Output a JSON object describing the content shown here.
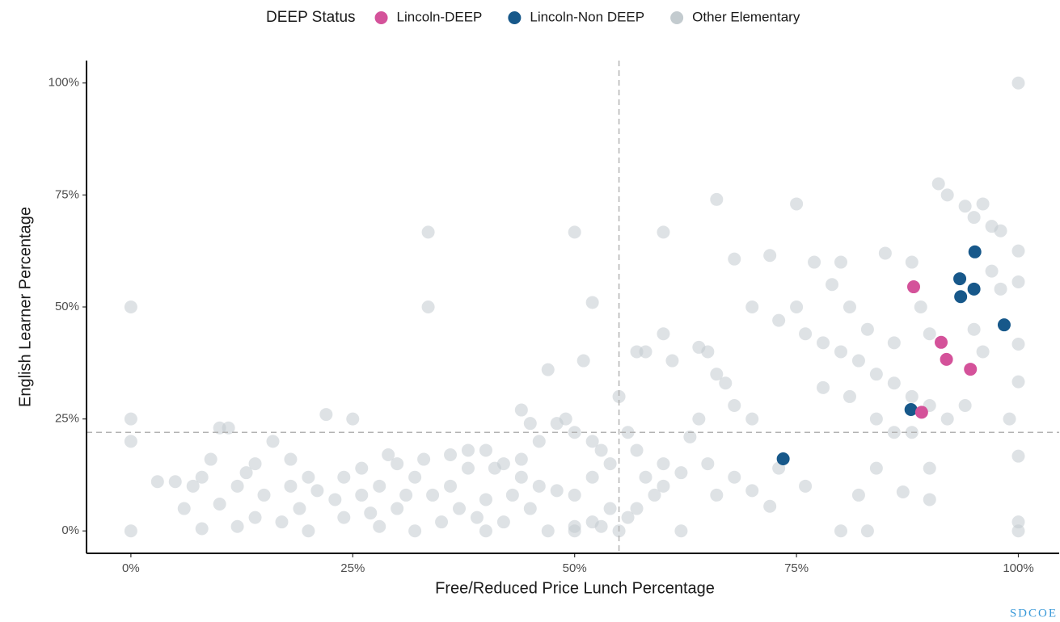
{
  "chart_data": {
    "type": "scatter",
    "xlabel": "Free/Reduced Price Lunch Percentage",
    "ylabel": "English Learner Percentage",
    "legend": {
      "title": "DEEP Status",
      "position": "top"
    },
    "watermark": "SDCOE",
    "xlim": [
      -5,
      104.6
    ],
    "ylim": [
      -5,
      105
    ],
    "xticks": [
      {
        "value": 0,
        "label": "0%"
      },
      {
        "value": 25,
        "label": "25%"
      },
      {
        "value": 50,
        "label": "50%"
      },
      {
        "value": 75,
        "label": "75%"
      },
      {
        "value": 100,
        "label": "100%"
      }
    ],
    "yticks": [
      {
        "value": 0,
        "label": "0%"
      },
      {
        "value": 25,
        "label": "25%"
      },
      {
        "value": 50,
        "label": "50%"
      },
      {
        "value": 75,
        "label": "75%"
      },
      {
        "value": 100,
        "label": "100%"
      }
    ],
    "grid": false,
    "vline": 55,
    "hline": 22,
    "series": [
      {
        "name": "Lincoln-DEEP",
        "color": "#d4529a",
        "x": [
          88.2,
          91.3,
          91.9,
          94.6,
          89.1
        ],
        "values": [
          54.5,
          42.1,
          38.3,
          36.1,
          26.5
        ]
      },
      {
        "name": "Lincoln-Non DEEP",
        "color": "#17588a",
        "x": [
          95.1,
          93.4,
          95.0,
          93.5,
          98.4,
          87.9,
          73.5
        ],
        "values": [
          62.3,
          56.3,
          54.0,
          52.3,
          46.0,
          27.1,
          16.1
        ]
      },
      {
        "name": "Other Elementary",
        "color": "#c3cbcf",
        "x": [
          0,
          0,
          0,
          0,
          33.5,
          33.5,
          50,
          50,
          40,
          100,
          100,
          100,
          100,
          100,
          100,
          100,
          100,
          66,
          75,
          60,
          91,
          92,
          94,
          96,
          97,
          98,
          95,
          89,
          88,
          85,
          80,
          77,
          72,
          68,
          70,
          73,
          76,
          78,
          80,
          82,
          84,
          86,
          88,
          90,
          92,
          94,
          96,
          99,
          98,
          97,
          95,
          90,
          86,
          83,
          81,
          79,
          75,
          78,
          81,
          84,
          86,
          88,
          90,
          90,
          87,
          84,
          82,
          80,
          83,
          76,
          73,
          72,
          70,
          68,
          66,
          65,
          64,
          63,
          62,
          64,
          65,
          66,
          67,
          68,
          70,
          61,
          60,
          58,
          57,
          55,
          56,
          57,
          58,
          59,
          60,
          56,
          54,
          53,
          52,
          51,
          47,
          44,
          45,
          48,
          49,
          50,
          52,
          53,
          54,
          52,
          50,
          48,
          46,
          44,
          42,
          40,
          38,
          36,
          34,
          32,
          30,
          28,
          26,
          24,
          22,
          25,
          20,
          18,
          16,
          14,
          12,
          10,
          11,
          9,
          8,
          7,
          6,
          5,
          3,
          8,
          12,
          14,
          17,
          20,
          24,
          28,
          30,
          32,
          35,
          37,
          39,
          42,
          43,
          45,
          47,
          50,
          52,
          55,
          57,
          60,
          62,
          15,
          19,
          23,
          27,
          31,
          33,
          36,
          41,
          44,
          46,
          29,
          26,
          21,
          13,
          10,
          18,
          38,
          40
        ],
        "values": [
          0,
          20,
          25,
          50,
          66.7,
          50,
          66.7,
          0,
          0,
          100,
          0,
          2,
          16.7,
          33.3,
          41.7,
          55.6,
          62.5,
          74,
          73,
          66.7,
          77.5,
          75,
          72.5,
          73,
          68,
          67,
          70,
          50,
          60,
          62,
          60,
          60,
          61.5,
          60.7,
          50,
          47,
          44,
          42,
          40,
          38,
          35,
          33,
          30,
          28,
          25,
          28,
          40,
          25,
          54,
          58,
          45,
          44,
          42,
          45,
          50,
          55,
          50,
          32,
          30,
          25,
          22,
          22,
          14,
          7,
          8.7,
          14,
          8,
          0,
          0,
          10,
          14,
          5.5,
          9,
          12,
          8,
          15,
          25,
          21,
          0,
          41,
          40,
          35,
          33,
          28,
          25,
          38,
          44,
          40,
          40,
          30,
          22,
          18,
          12,
          8,
          15,
          3,
          5,
          1,
          51,
          38,
          36,
          27,
          24,
          24,
          25,
          22,
          20,
          18,
          15,
          12,
          8,
          9,
          10,
          12,
          15,
          18,
          14,
          10,
          8,
          12,
          15,
          10,
          8,
          12,
          26,
          25,
          12,
          10,
          20,
          15,
          10,
          23,
          23,
          16,
          12,
          10,
          5,
          11,
          11,
          0.5,
          1,
          3,
          2,
          0,
          3,
          1,
          5,
          0,
          2,
          5,
          3,
          2,
          8,
          5,
          0,
          1,
          2,
          0,
          5,
          10,
          13,
          8,
          5,
          7,
          4,
          8,
          16,
          17,
          14,
          16,
          20,
          17,
          14,
          9,
          13,
          6,
          16,
          18,
          7
        ]
      }
    ]
  }
}
